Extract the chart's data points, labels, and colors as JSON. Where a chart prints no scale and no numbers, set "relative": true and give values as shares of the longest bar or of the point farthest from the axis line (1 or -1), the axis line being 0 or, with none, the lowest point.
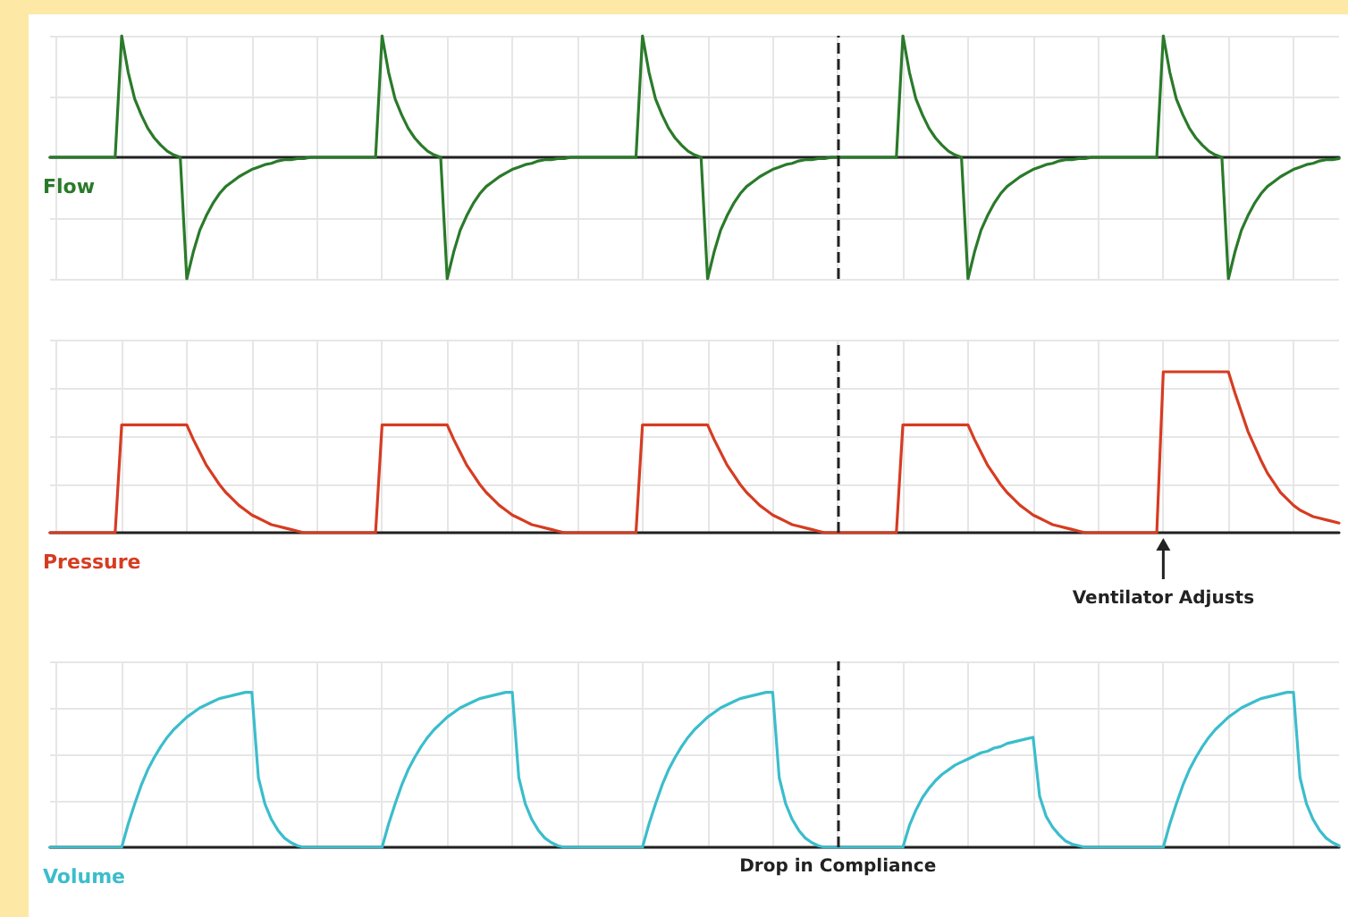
{
  "chart_data": [
    {
      "type": "line",
      "relative": true,
      "grid": true,
      "legend": false,
      "marker": "none",
      "line_style": "solid",
      "categories": [
        null,
        null,
        null,
        null,
        null,
        null,
        null,
        null,
        null,
        null,
        null,
        null,
        null,
        null,
        null,
        null,
        null,
        null,
        null,
        null,
        null,
        null,
        null,
        null,
        null,
        null,
        null,
        null,
        null,
        null,
        null,
        null,
        null,
        null,
        null,
        null,
        null,
        null,
        null,
        null,
        null,
        null,
        null,
        null,
        null,
        null,
        null,
        null,
        null,
        null,
        null,
        null,
        null,
        null,
        null,
        null,
        null,
        null,
        null,
        null,
        null,
        null,
        null,
        null,
        null,
        null,
        null,
        null,
        null,
        null,
        null,
        null,
        null,
        null,
        null,
        null,
        null,
        null,
        null,
        null,
        null,
        null,
        null,
        null,
        null,
        null,
        null,
        null,
        null,
        null,
        null,
        null,
        null,
        null,
        null,
        null,
        null,
        null,
        null,
        null,
        null,
        null,
        null,
        null,
        null,
        null,
        null,
        null,
        null,
        null,
        null,
        null,
        null,
        null,
        null,
        null,
        null,
        null,
        null,
        null,
        null,
        null,
        null,
        null,
        null,
        null,
        null,
        null,
        null,
        null,
        null,
        null,
        null,
        null,
        null,
        null,
        null,
        null,
        null,
        null,
        null,
        null,
        null,
        null,
        null,
        null,
        null,
        null,
        null,
        null,
        null,
        null,
        null,
        null,
        null,
        null,
        null,
        null,
        null,
        null,
        null,
        null,
        null,
        null,
        null,
        null,
        null,
        null,
        null,
        null,
        null,
        null,
        null,
        null,
        null,
        null,
        null,
        null,
        null,
        null,
        null,
        null,
        null,
        null,
        null,
        null,
        null,
        null,
        null,
        null,
        null,
        null,
        null,
        null,
        null,
        null,
        null,
        null,
        null
      ],
      "series": [
        {
          "name": "Flow",
          "color": "#2a7a2a",
          "values": [
            0,
            0,
            0,
            0,
            0,
            0,
            0,
            0,
            0,
            0,
            0,
            1,
            0.7,
            0.48,
            0.35,
            0.24,
            0.16,
            0.1,
            0.05,
            0.02,
            0,
            -1,
            -0.78,
            -0.6,
            -0.48,
            -0.38,
            -0.3,
            -0.24,
            -0.2,
            -0.16,
            -0.13,
            -0.1,
            -0.08,
            -0.06,
            -0.05,
            -0.03,
            -0.02,
            -0.02,
            -0.01,
            -0.01,
            0,
            0,
            0,
            0,
            0,
            0,
            0,
            0,
            0,
            0,
            0,
            1,
            0.7,
            0.48,
            0.35,
            0.24,
            0.16,
            0.1,
            0.05,
            0.02,
            0,
            -1,
            -0.78,
            -0.6,
            -0.48,
            -0.38,
            -0.3,
            -0.24,
            -0.2,
            -0.16,
            -0.13,
            -0.1,
            -0.08,
            -0.06,
            -0.05,
            -0.03,
            -0.02,
            -0.02,
            -0.01,
            -0.01,
            0,
            0,
            0,
            0,
            0,
            0,
            0,
            0,
            0,
            0,
            0,
            1,
            0.7,
            0.48,
            0.35,
            0.24,
            0.16,
            0.1,
            0.05,
            0.02,
            0,
            -1,
            -0.78,
            -0.6,
            -0.48,
            -0.38,
            -0.3,
            -0.24,
            -0.2,
            -0.16,
            -0.13,
            -0.1,
            -0.08,
            -0.06,
            -0.05,
            -0.03,
            -0.02,
            -0.02,
            -0.01,
            -0.01,
            0,
            0,
            0,
            0,
            0,
            0,
            0,
            0,
            0,
            0,
            0,
            1,
            0.7,
            0.48,
            0.35,
            0.24,
            0.16,
            0.1,
            0.05,
            0.02,
            0,
            -1,
            -0.78,
            -0.6,
            -0.48,
            -0.38,
            -0.3,
            -0.24,
            -0.2,
            -0.16,
            -0.13,
            -0.1,
            -0.08,
            -0.06,
            -0.05,
            -0.03,
            -0.02,
            -0.02,
            -0.01,
            -0.01,
            0,
            0,
            0,
            0,
            0,
            0,
            0,
            0,
            0,
            0,
            0,
            1,
            0.7,
            0.48,
            0.35,
            0.24,
            0.16,
            0.1,
            0.05,
            0.02,
            0,
            -1,
            -0.78,
            -0.6,
            -0.48,
            -0.38,
            -0.3,
            -0.24,
            -0.2,
            -0.16,
            -0.13,
            -0.1,
            -0.08,
            -0.06,
            -0.05,
            -0.03,
            -0.02,
            -0.02,
            -0.01
          ]
        }
      ]
    },
    {
      "type": "line",
      "relative": true,
      "grid": true,
      "legend": false,
      "marker": "none",
      "line_style": "solid",
      "categories": [
        null,
        null,
        null,
        null,
        null,
        null,
        null,
        null,
        null,
        null,
        null,
        null,
        null,
        null,
        null,
        null,
        null,
        null,
        null,
        null,
        null,
        null,
        null,
        null,
        null,
        null,
        null,
        null,
        null,
        null,
        null,
        null,
        null,
        null,
        null,
        null,
        null,
        null,
        null,
        null,
        null,
        null,
        null,
        null,
        null,
        null,
        null,
        null,
        null,
        null,
        null,
        null,
        null,
        null,
        null,
        null,
        null,
        null,
        null,
        null,
        null,
        null,
        null,
        null,
        null,
        null,
        null,
        null,
        null,
        null,
        null,
        null,
        null,
        null,
        null,
        null,
        null,
        null,
        null,
        null,
        null,
        null,
        null,
        null,
        null,
        null,
        null,
        null,
        null,
        null,
        null,
        null,
        null,
        null,
        null,
        null,
        null,
        null,
        null,
        null,
        null,
        null,
        null,
        null,
        null,
        null,
        null,
        null,
        null,
        null,
        null,
        null,
        null,
        null,
        null,
        null,
        null,
        null,
        null,
        null,
        null,
        null,
        null,
        null,
        null,
        null,
        null,
        null,
        null,
        null,
        null,
        null,
        null,
        null,
        null,
        null,
        null,
        null,
        null,
        null,
        null,
        null,
        null,
        null,
        null,
        null,
        null,
        null,
        null,
        null,
        null,
        null,
        null,
        null,
        null,
        null,
        null,
        null,
        null,
        null,
        null,
        null,
        null,
        null,
        null,
        null,
        null,
        null,
        null,
        null,
        null,
        null,
        null,
        null,
        null,
        null,
        null,
        null,
        null,
        null,
        null,
        null,
        null,
        null,
        null,
        null,
        null,
        null,
        null,
        null,
        null,
        null,
        null,
        null,
        null,
        null,
        null,
        null,
        null
      ],
      "annotations": [
        "Ventilator Adjusts"
      ],
      "series": [
        {
          "name": "Pressure",
          "color": "#d63c22",
          "values": [
            0,
            0,
            0,
            0,
            0,
            0,
            0,
            0,
            0,
            0,
            0,
            0.67,
            0.67,
            0.67,
            0.67,
            0.67,
            0.67,
            0.67,
            0.67,
            0.67,
            0.67,
            0.67,
            0.58,
            0.5,
            0.42,
            0.36,
            0.3,
            0.25,
            0.21,
            0.17,
            0.14,
            0.11,
            0.09,
            0.07,
            0.05,
            0.04,
            0.03,
            0.02,
            0.01,
            0,
            0,
            0,
            0,
            0,
            0,
            0,
            0,
            0,
            0,
            0,
            0,
            0.67,
            0.67,
            0.67,
            0.67,
            0.67,
            0.67,
            0.67,
            0.67,
            0.67,
            0.67,
            0.67,
            0.58,
            0.5,
            0.42,
            0.36,
            0.3,
            0.25,
            0.21,
            0.17,
            0.14,
            0.11,
            0.09,
            0.07,
            0.05,
            0.04,
            0.03,
            0.02,
            0.01,
            0,
            0,
            0,
            0,
            0,
            0,
            0,
            0,
            0,
            0,
            0,
            0,
            0.67,
            0.67,
            0.67,
            0.67,
            0.67,
            0.67,
            0.67,
            0.67,
            0.67,
            0.67,
            0.67,
            0.58,
            0.5,
            0.42,
            0.36,
            0.3,
            0.25,
            0.21,
            0.17,
            0.14,
            0.11,
            0.09,
            0.07,
            0.05,
            0.04,
            0.03,
            0.02,
            0.01,
            0,
            0,
            0,
            0,
            0,
            0,
            0,
            0,
            0,
            0,
            0,
            0,
            0.67,
            0.67,
            0.67,
            0.67,
            0.67,
            0.67,
            0.67,
            0.67,
            0.67,
            0.67,
            0.67,
            0.58,
            0.5,
            0.42,
            0.36,
            0.3,
            0.25,
            0.21,
            0.17,
            0.14,
            0.11,
            0.09,
            0.07,
            0.05,
            0.04,
            0.03,
            0.02,
            0.01,
            0,
            0,
            0,
            0,
            0,
            0,
            0,
            0,
            0,
            0,
            0,
            0,
            1,
            1,
            1,
            1,
            1,
            1,
            1,
            1,
            1,
            1,
            1,
            0.87,
            0.75,
            0.63,
            0.54,
            0.45,
            0.37,
            0.31,
            0.25,
            0.21,
            0.17,
            0.14,
            0.12,
            0.1,
            0.09,
            0.08,
            0.07,
            0.06
          ]
        }
      ]
    },
    {
      "type": "line",
      "relative": true,
      "grid": true,
      "legend": false,
      "marker": "none",
      "line_style": "solid",
      "categories": [
        null,
        null,
        null,
        null,
        null,
        null,
        null,
        null,
        null,
        null,
        null,
        null,
        null,
        null,
        null,
        null,
        null,
        null,
        null,
        null,
        null,
        null,
        null,
        null,
        null,
        null,
        null,
        null,
        null,
        null,
        null,
        null,
        null,
        null,
        null,
        null,
        null,
        null,
        null,
        null,
        null,
        null,
        null,
        null,
        null,
        null,
        null,
        null,
        null,
        null,
        null,
        null,
        null,
        null,
        null,
        null,
        null,
        null,
        null,
        null,
        null,
        null,
        null,
        null,
        null,
        null,
        null,
        null,
        null,
        null,
        null,
        null,
        null,
        null,
        null,
        null,
        null,
        null,
        null,
        null,
        null,
        null,
        null,
        null,
        null,
        null,
        null,
        null,
        null,
        null,
        null,
        null,
        null,
        null,
        null,
        null,
        null,
        null,
        null,
        null,
        null,
        null,
        null,
        null,
        null,
        null,
        null,
        null,
        null,
        null,
        null,
        null,
        null,
        null,
        null,
        null,
        null,
        null,
        null,
        null,
        null,
        null,
        null,
        null,
        null,
        null,
        null,
        null,
        null,
        null,
        null,
        null,
        null,
        null,
        null,
        null,
        null,
        null,
        null,
        null,
        null,
        null,
        null,
        null,
        null,
        null,
        null,
        null,
        null,
        null,
        null,
        null,
        null,
        null,
        null,
        null,
        null,
        null,
        null,
        null,
        null,
        null,
        null,
        null,
        null,
        null,
        null,
        null,
        null,
        null,
        null,
        null,
        null,
        null,
        null,
        null,
        null,
        null,
        null,
        null,
        null,
        null,
        null,
        null,
        null,
        null,
        null,
        null,
        null,
        null,
        null,
        null,
        null,
        null,
        null,
        null,
        null,
        null,
        null
      ],
      "annotations": [
        "Drop in Compliance"
      ],
      "series": [
        {
          "name": "Volume",
          "color": "#3bbdcc",
          "values": [
            0,
            0,
            0,
            0,
            0,
            0,
            0,
            0,
            0,
            0,
            0,
            0,
            0.15,
            0.28,
            0.4,
            0.5,
            0.58,
            0.65,
            0.71,
            0.76,
            0.8,
            0.84,
            0.87,
            0.9,
            0.92,
            0.94,
            0.96,
            0.97,
            0.98,
            0.99,
            1,
            1,
            0.45,
            0.28,
            0.18,
            0.11,
            0.06,
            0.03,
            0.01,
            0,
            0,
            0,
            0,
            0,
            0,
            0,
            0,
            0,
            0,
            0,
            0,
            0,
            0.15,
            0.28,
            0.4,
            0.5,
            0.58,
            0.65,
            0.71,
            0.76,
            0.8,
            0.84,
            0.87,
            0.9,
            0.92,
            0.94,
            0.96,
            0.97,
            0.98,
            0.99,
            1,
            1,
            0.45,
            0.28,
            0.18,
            0.11,
            0.06,
            0.03,
            0.01,
            0,
            0,
            0,
            0,
            0,
            0,
            0,
            0,
            0,
            0,
            0,
            0,
            0,
            0.15,
            0.28,
            0.4,
            0.5,
            0.58,
            0.65,
            0.71,
            0.76,
            0.8,
            0.84,
            0.87,
            0.9,
            0.92,
            0.94,
            0.96,
            0.97,
            0.98,
            0.99,
            1,
            1,
            0.45,
            0.28,
            0.18,
            0.11,
            0.06,
            0.03,
            0.01,
            0,
            0,
            0,
            0,
            0,
            0,
            0,
            0,
            0,
            0,
            0,
            0,
            0,
            0.14,
            0.24,
            0.32,
            0.38,
            0.43,
            0.47,
            0.5,
            0.53,
            0.55,
            0.57,
            0.59,
            0.61,
            0.62,
            0.64,
            0.65,
            0.67,
            0.68,
            0.69,
            0.7,
            0.71,
            0.33,
            0.2,
            0.13,
            0.08,
            0.04,
            0.02,
            0.01,
            0,
            0,
            0,
            0,
            0,
            0,
            0,
            0,
            0,
            0,
            0,
            0,
            0,
            0.15,
            0.28,
            0.4,
            0.5,
            0.58,
            0.65,
            0.71,
            0.76,
            0.8,
            0.84,
            0.87,
            0.9,
            0.92,
            0.94,
            0.96,
            0.97,
            0.98,
            0.99,
            1,
            1,
            0.45,
            0.28,
            0.18,
            0.11,
            0.06,
            0.03,
            0.01
          ]
        }
      ]
    }
  ]
}
